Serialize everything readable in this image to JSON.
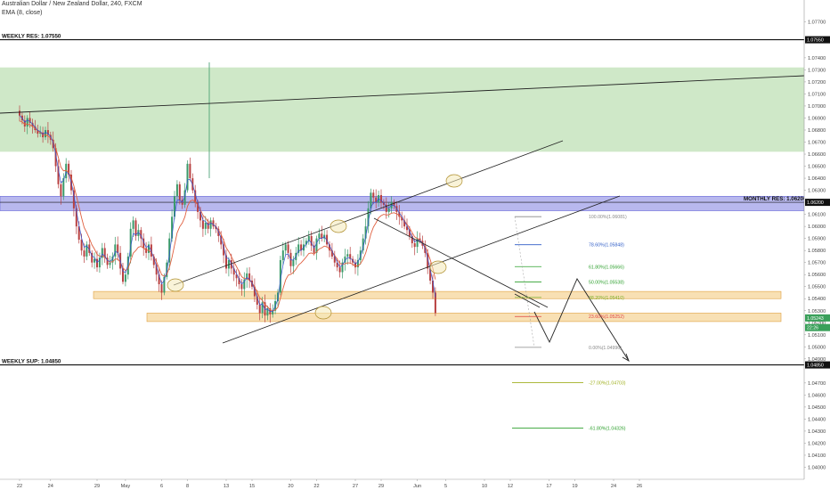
{
  "header": {
    "symbol": "Australian Dollar / New Zealand Dollar, 240, FXCM",
    "indicator": "EMA (8, close)"
  },
  "chart_data": {
    "type": "candlestick",
    "y_axis": {
      "min": 1.039,
      "max": 1.0788,
      "ticks": [
        "1.07700",
        "1.07550",
        "1.07400",
        "1.07300",
        "1.07200",
        "1.07100",
        "1.07000",
        "1.06900",
        "1.06800",
        "1.06700",
        "1.06600",
        "1.06500",
        "1.06400",
        "1.06300",
        "1.06200",
        "1.06100",
        "1.06000",
        "1.05900",
        "1.05800",
        "1.05700",
        "1.05600",
        "1.05500",
        "1.05400",
        "1.05300",
        "1.05200",
        "1.05100",
        "1.05000",
        "1.04900",
        "1.04850",
        "1.04700",
        "1.04600",
        "1.04500",
        "1.04400",
        "1.04300",
        "1.04200",
        "1.04100",
        "1.04000"
      ]
    },
    "x_axis": {
      "ticks": [
        {
          "label": "22",
          "i": 0
        },
        {
          "label": "24",
          "i": 12
        },
        {
          "label": "29",
          "i": 30
        },
        {
          "label": "May",
          "i": 41
        },
        {
          "label": "6",
          "i": 55
        },
        {
          "label": "8",
          "i": 65
        },
        {
          "label": "13",
          "i": 80
        },
        {
          "label": "15",
          "i": 90
        },
        {
          "label": "20",
          "i": 105
        },
        {
          "label": "22",
          "i": 115
        },
        {
          "label": "27",
          "i": 130
        },
        {
          "label": "29",
          "i": 140
        },
        {
          "label": "Jun",
          "i": 154
        },
        {
          "label": "5",
          "i": 165
        },
        {
          "label": "10",
          "i": 180
        },
        {
          "label": "12",
          "i": 190
        },
        {
          "label": "17",
          "i": 205
        },
        {
          "label": "19",
          "i": 215
        },
        {
          "label": "24",
          "i": 230
        },
        {
          "label": "26",
          "i": 240
        }
      ]
    },
    "closes": [
      1.0692,
      1.0688,
      1.0683,
      1.069,
      1.0686,
      1.0683,
      1.068,
      1.0677,
      1.0678,
      1.0674,
      1.068,
      1.0676,
      1.0672,
      1.0665,
      1.065,
      1.0635,
      1.0625,
      1.064,
      1.0652,
      1.0643,
      1.063,
      1.0615,
      1.06,
      1.0589,
      1.058,
      1.0575,
      1.0585,
      1.0578,
      1.057,
      1.0573,
      1.0566,
      1.0574,
      1.0582,
      1.0574,
      1.0568,
      1.057,
      1.0575,
      1.0585,
      1.0578,
      1.0565,
      1.0554,
      1.056,
      1.0575,
      1.0598,
      1.0605,
      1.0592,
      1.0597,
      1.059,
      1.0582,
      1.0578,
      1.0585,
      1.0575,
      1.0568,
      1.056,
      1.0552,
      1.0545,
      1.0558,
      1.057,
      1.059,
      1.0608,
      1.0625,
      1.0635,
      1.0622,
      1.0618,
      1.063,
      1.0652,
      1.064,
      1.063,
      1.062,
      1.0612,
      1.0605,
      1.0598,
      1.0603,
      1.0598,
      1.0605,
      1.06,
      1.0598,
      1.0592,
      1.0585,
      1.0576,
      1.0565,
      1.0572,
      1.0565,
      1.056,
      1.0557,
      1.0552,
      1.0548,
      1.0556,
      1.0561,
      1.0555,
      1.055,
      1.0542,
      1.0535,
      1.0528,
      1.0537,
      1.0526,
      1.0532,
      1.0527,
      1.053,
      1.0538,
      1.0545,
      1.0572,
      1.058,
      1.0585,
      1.0578,
      1.0567,
      1.0572,
      1.0578,
      1.0585,
      1.058,
      1.0585,
      1.0588,
      1.0592,
      1.0584,
      1.0578,
      1.059,
      1.0594,
      1.059,
      1.0593,
      1.0585,
      1.058,
      1.0575,
      1.057,
      1.0566,
      1.0562,
      1.057,
      1.0575,
      1.0577,
      1.0573,
      1.057,
      1.0566,
      1.0572,
      1.058,
      1.059,
      1.06,
      1.0615,
      1.0628,
      1.0624,
      1.062,
      1.0626,
      1.062,
      1.0618,
      1.0612,
      1.0615,
      1.062,
      1.0617,
      1.0612,
      1.0608,
      1.0605,
      1.06,
      1.0597,
      1.0592,
      1.0586,
      1.0583,
      1.059,
      1.0588,
      1.0584,
      1.0578,
      1.0565,
      1.0555,
      1.0545,
      1.0528
    ],
    "ema8": "EMA (8, close)",
    "zones": [
      {
        "name": "weekly-resistance-zone",
        "from": 1.0662,
        "to": 1.0732,
        "color": "#cfe8c8"
      },
      {
        "name": "monthly-resistance-zone",
        "from": 1.0613,
        "to": 1.0625,
        "color": "#b8b8ee"
      },
      {
        "name": "support-zone-1",
        "from": 1.054,
        "to": 1.0546,
        "color": "#f8e0b4"
      },
      {
        "name": "support-zone-2",
        "from": 1.0521,
        "to": 1.0528,
        "color": "#f8e0b4"
      }
    ],
    "levels": [
      {
        "label": "WEEKLY RES: 1.07550",
        "price": 1.0755,
        "axis_label": "1.07550"
      },
      {
        "label": "MONTHLY RES: 1.06200",
        "price": 1.062,
        "axis_label": "1.06200"
      },
      {
        "label": "WEEKLY SUP: 1.04850",
        "price": 1.0485,
        "axis_label": "1.04850"
      }
    ],
    "fib_levels": [
      {
        "label": "100.00%(1.06081)",
        "price": 1.06081,
        "color": "#888888"
      },
      {
        "label": "78.60%(1.05848)",
        "price": 1.05848,
        "color": "#2e5cc7"
      },
      {
        "label": "61.80%(1.05666)",
        "price": 1.05666,
        "color": "#2ea02e"
      },
      {
        "label": "50.00%(1.05538)",
        "price": 1.05538,
        "color": "#2ea02e"
      },
      {
        "label": "38.20%(1.05410)",
        "price": 1.0541,
        "color": "#7ab02e"
      },
      {
        "label": "23.60%(1.05252)",
        "price": 1.05252,
        "color": "#e04040"
      },
      {
        "label": "0.00%(1.04996)",
        "price": 1.04996,
        "color": "#888888"
      },
      {
        "label": "-27.00%(1.04703)",
        "price": 1.04703,
        "color": "#a0b020"
      },
      {
        "label": "-61.80%(1.04326)",
        "price": 1.04326,
        "color": "#2ea02e"
      }
    ],
    "price_tags": [
      {
        "text": "1.05243",
        "color": "#3aa05a",
        "price": 1.0524
      },
      {
        "text": "22:26",
        "color": "#3aa05a",
        "price": 1.0516
      }
    ]
  },
  "colors": {
    "up": "#3a9a6a",
    "down": "#b84040",
    "ema": "#e06040",
    "ema_fast": "#3050d0",
    "line": "#222222"
  }
}
